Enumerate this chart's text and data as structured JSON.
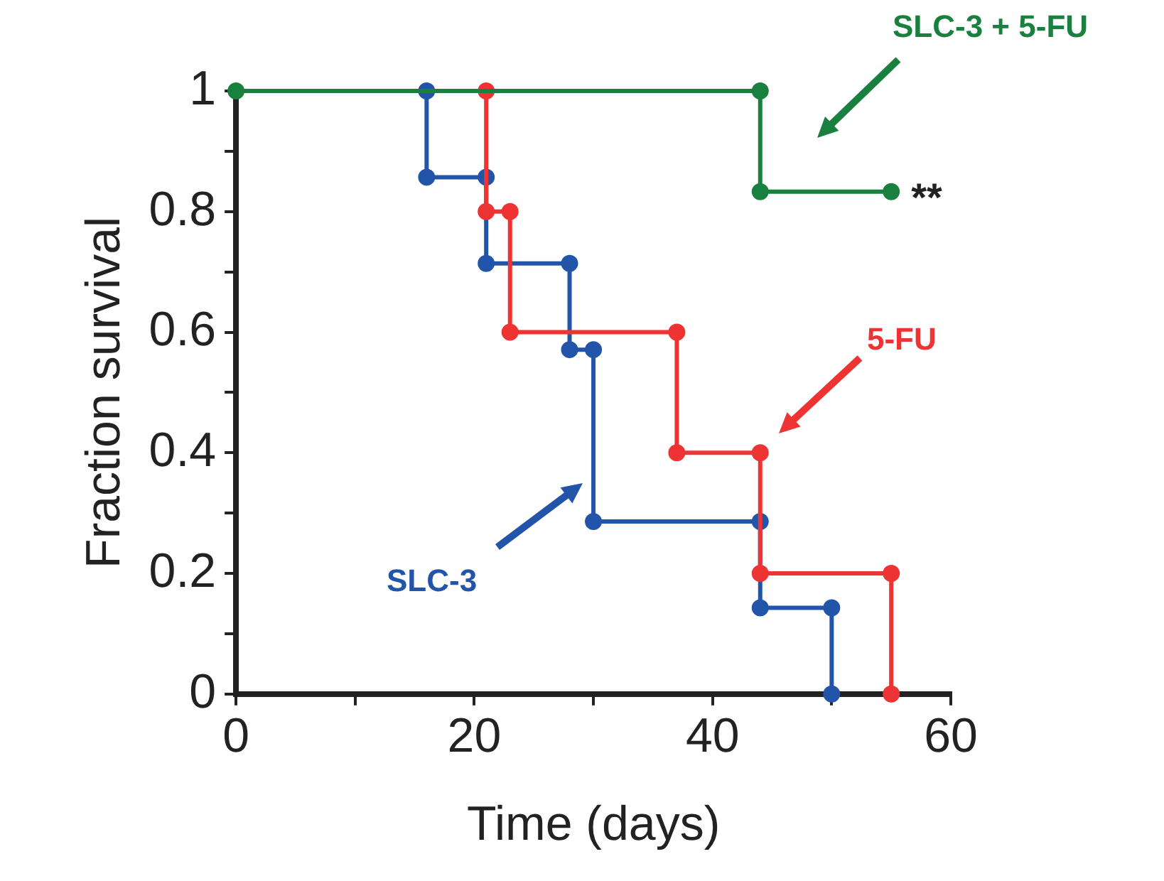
{
  "chart_data": {
    "type": "line",
    "xlabel": "Time (days)",
    "ylabel": "Fraction survival",
    "xlim": [
      0,
      60
    ],
    "xticks": [
      0,
      {
        "value": 10,
        "label": null
      },
      20,
      {
        "value": 30,
        "label": null
      },
      40,
      {
        "value": 50,
        "label": null
      },
      60
    ],
    "ylim": [
      0,
      1
    ],
    "yticks": [
      0,
      {
        "value": 0.1,
        "label": null
      },
      0.2,
      {
        "value": 0.3,
        "label": null
      },
      0.4,
      {
        "value": 0.5,
        "label": null
      },
      0.6,
      {
        "value": 0.7,
        "label": null
      },
      0.8,
      {
        "value": 0.9,
        "label": null
      },
      1
    ],
    "grid": false,
    "legend": false,
    "marker": "circle",
    "line_style": "solid",
    "series": [
      {
        "name": "SLC-3 + 5-FU",
        "color": "#1a8040",
        "x": [
          0,
          44,
          44,
          55
        ],
        "values": [
          1,
          1,
          0.833,
          0.833
        ]
      },
      {
        "name": "5-FU",
        "color": "#ee3333",
        "x": [
          21,
          21,
          23,
          23,
          37,
          37,
          44,
          44,
          55,
          55
        ],
        "values": [
          1,
          0.8,
          0.8,
          0.6,
          0.6,
          0.4,
          0.4,
          0.2,
          0.2,
          0
        ]
      },
      {
        "name": "SLC-3",
        "color": "#2255aa",
        "x": [
          16,
          16,
          21,
          21,
          28,
          28,
          30,
          30,
          44,
          44,
          50,
          50
        ],
        "values": [
          1,
          0.857,
          0.857,
          0.714,
          0.714,
          0.571,
          0.571,
          0.286,
          0.286,
          0.143,
          0.143,
          0
        ]
      }
    ],
    "annotations": [
      {
        "text": "**",
        "x": 55,
        "y": 0.833
      }
    ]
  }
}
